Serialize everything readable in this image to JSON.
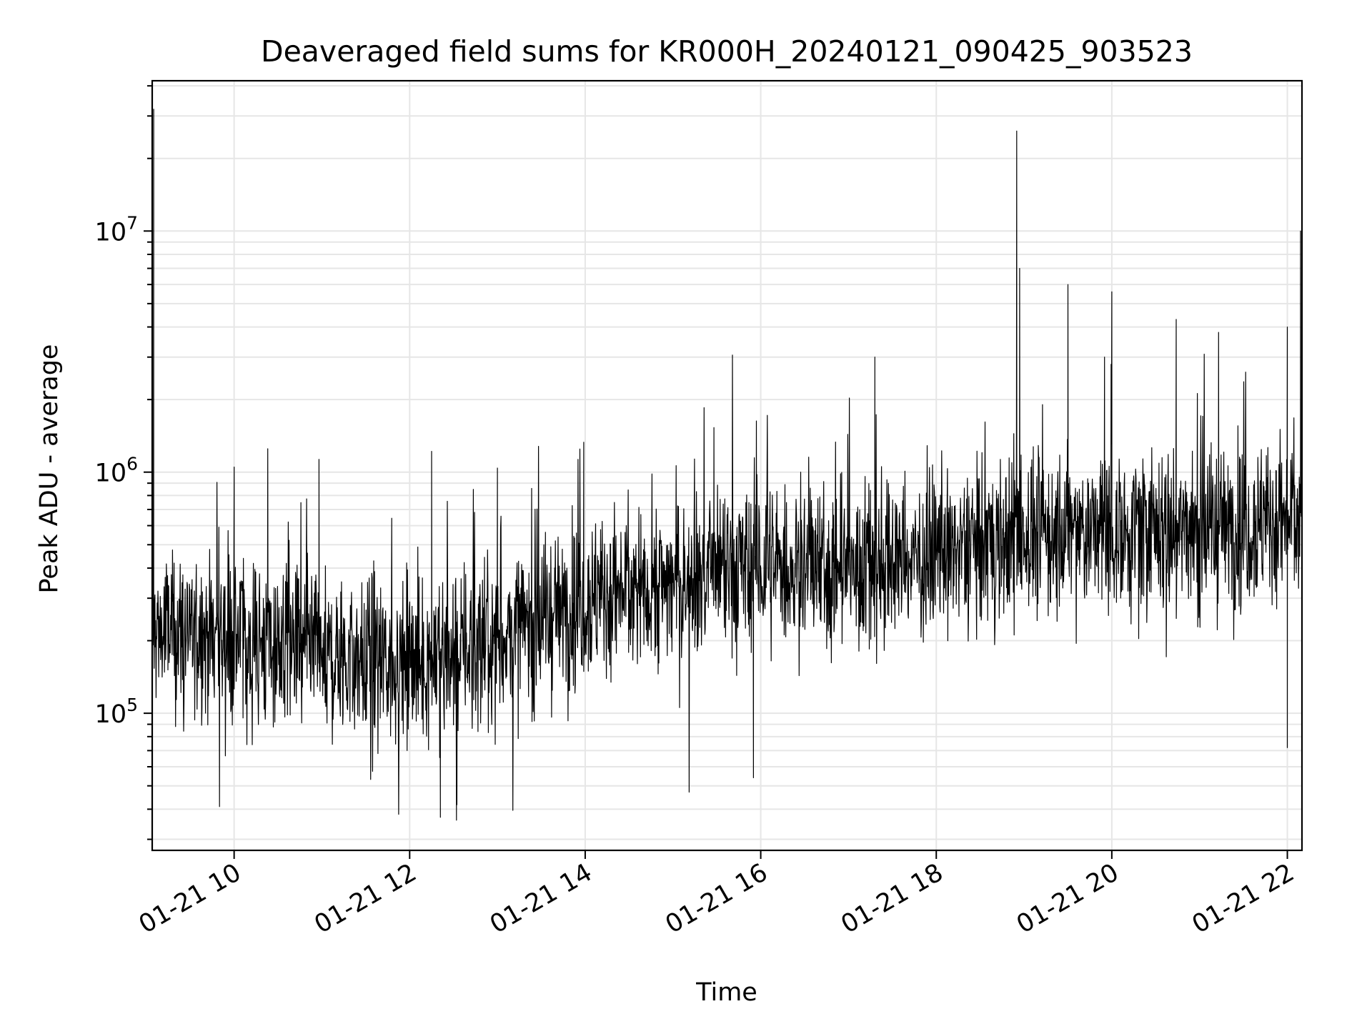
{
  "chart_data": {
    "type": "line",
    "title": "Deaveraged field sums for KR000H_20240121_090425_903523",
    "xlabel": "Time",
    "ylabel": "Peak ADU - average",
    "yscale": "log",
    "grid": true,
    "x_range": [
      "2024-01-21 09:04",
      "2024-01-21 22:10"
    ],
    "ylim": [
      27000,
      42000000
    ],
    "x_ticks": [
      {
        "time": "2024-01-21 10:00",
        "label": "01-21 10"
      },
      {
        "time": "2024-01-21 12:00",
        "label": "01-21 12"
      },
      {
        "time": "2024-01-21 14:00",
        "label": "01-21 14"
      },
      {
        "time": "2024-01-21 16:00",
        "label": "01-21 16"
      },
      {
        "time": "2024-01-21 18:00",
        "label": "01-21 18"
      },
      {
        "time": "2024-01-21 20:00",
        "label": "01-21 20"
      },
      {
        "time": "2024-01-21 22:00",
        "label": "01-21 22"
      }
    ],
    "y_ticks": [
      {
        "value": 100000,
        "base": "10",
        "exp": "5"
      },
      {
        "value": 1000000,
        "base": "10",
        "exp": "6"
      },
      {
        "value": 10000000,
        "base": "10",
        "exp": "7"
      }
    ],
    "series": [
      {
        "color": "#000000",
        "trend": [
          {
            "x": "2024-01-21 09:04",
            "y": 220000
          },
          {
            "x": "2024-01-21 10:00",
            "y": 210000
          },
          {
            "x": "2024-01-21 11:00",
            "y": 170000
          },
          {
            "x": "2024-01-21 12:00",
            "y": 160000
          },
          {
            "x": "2024-01-21 13:00",
            "y": 200000
          },
          {
            "x": "2024-01-21 14:00",
            "y": 300000
          },
          {
            "x": "2024-01-21 15:00",
            "y": 350000
          },
          {
            "x": "2024-01-21 16:00",
            "y": 400000
          },
          {
            "x": "2024-01-21 17:00",
            "y": 400000
          },
          {
            "x": "2024-01-21 18:00",
            "y": 450000
          },
          {
            "x": "2024-01-21 19:00",
            "y": 550000
          },
          {
            "x": "2024-01-21 20:00",
            "y": 580000
          },
          {
            "x": "2024-01-21 21:00",
            "y": 580000
          },
          {
            "x": "2024-01-21 22:10",
            "y": 650000
          }
        ],
        "peaks": [
          {
            "x": "2024-01-21 09:05",
            "y": 32000000
          },
          {
            "x": "2024-01-21 10:00",
            "y": 1050000
          },
          {
            "x": "2024-01-21 10:23",
            "y": 1250000
          },
          {
            "x": "2024-01-21 10:58",
            "y": 1130000
          },
          {
            "x": "2024-01-21 12:15",
            "y": 1220000
          },
          {
            "x": "2024-01-21 13:00",
            "y": 1040000
          },
          {
            "x": "2024-01-21 13:59",
            "y": 1330000
          },
          {
            "x": "2024-01-21 15:28",
            "y": 1530000
          },
          {
            "x": "2024-01-21 15:57",
            "y": 1630000
          },
          {
            "x": "2024-01-21 17:18",
            "y": 3000000
          },
          {
            "x": "2024-01-21 18:55",
            "y": 26000000
          },
          {
            "x": "2024-01-21 18:57",
            "y": 7000000
          },
          {
            "x": "2024-01-21 19:30",
            "y": 6000000
          },
          {
            "x": "2024-01-21 19:55",
            "y": 3000000
          },
          {
            "x": "2024-01-21 20:00",
            "y": 5600000
          },
          {
            "x": "2024-01-21 20:44",
            "y": 4300000
          },
          {
            "x": "2024-01-21 21:13",
            "y": 3800000
          },
          {
            "x": "2024-01-21 22:00",
            "y": 4000000
          },
          {
            "x": "2024-01-21 22:09",
            "y": 10000000
          }
        ],
        "troughs": [
          {
            "x": "2024-01-21 09:50",
            "y": 41000
          },
          {
            "x": "2024-01-21 12:21",
            "y": 37000
          },
          {
            "x": "2024-01-21 12:32",
            "y": 36000
          },
          {
            "x": "2024-01-21 15:55",
            "y": 54000
          },
          {
            "x": "2024-01-21 22:00",
            "y": 72000
          }
        ]
      }
    ]
  }
}
